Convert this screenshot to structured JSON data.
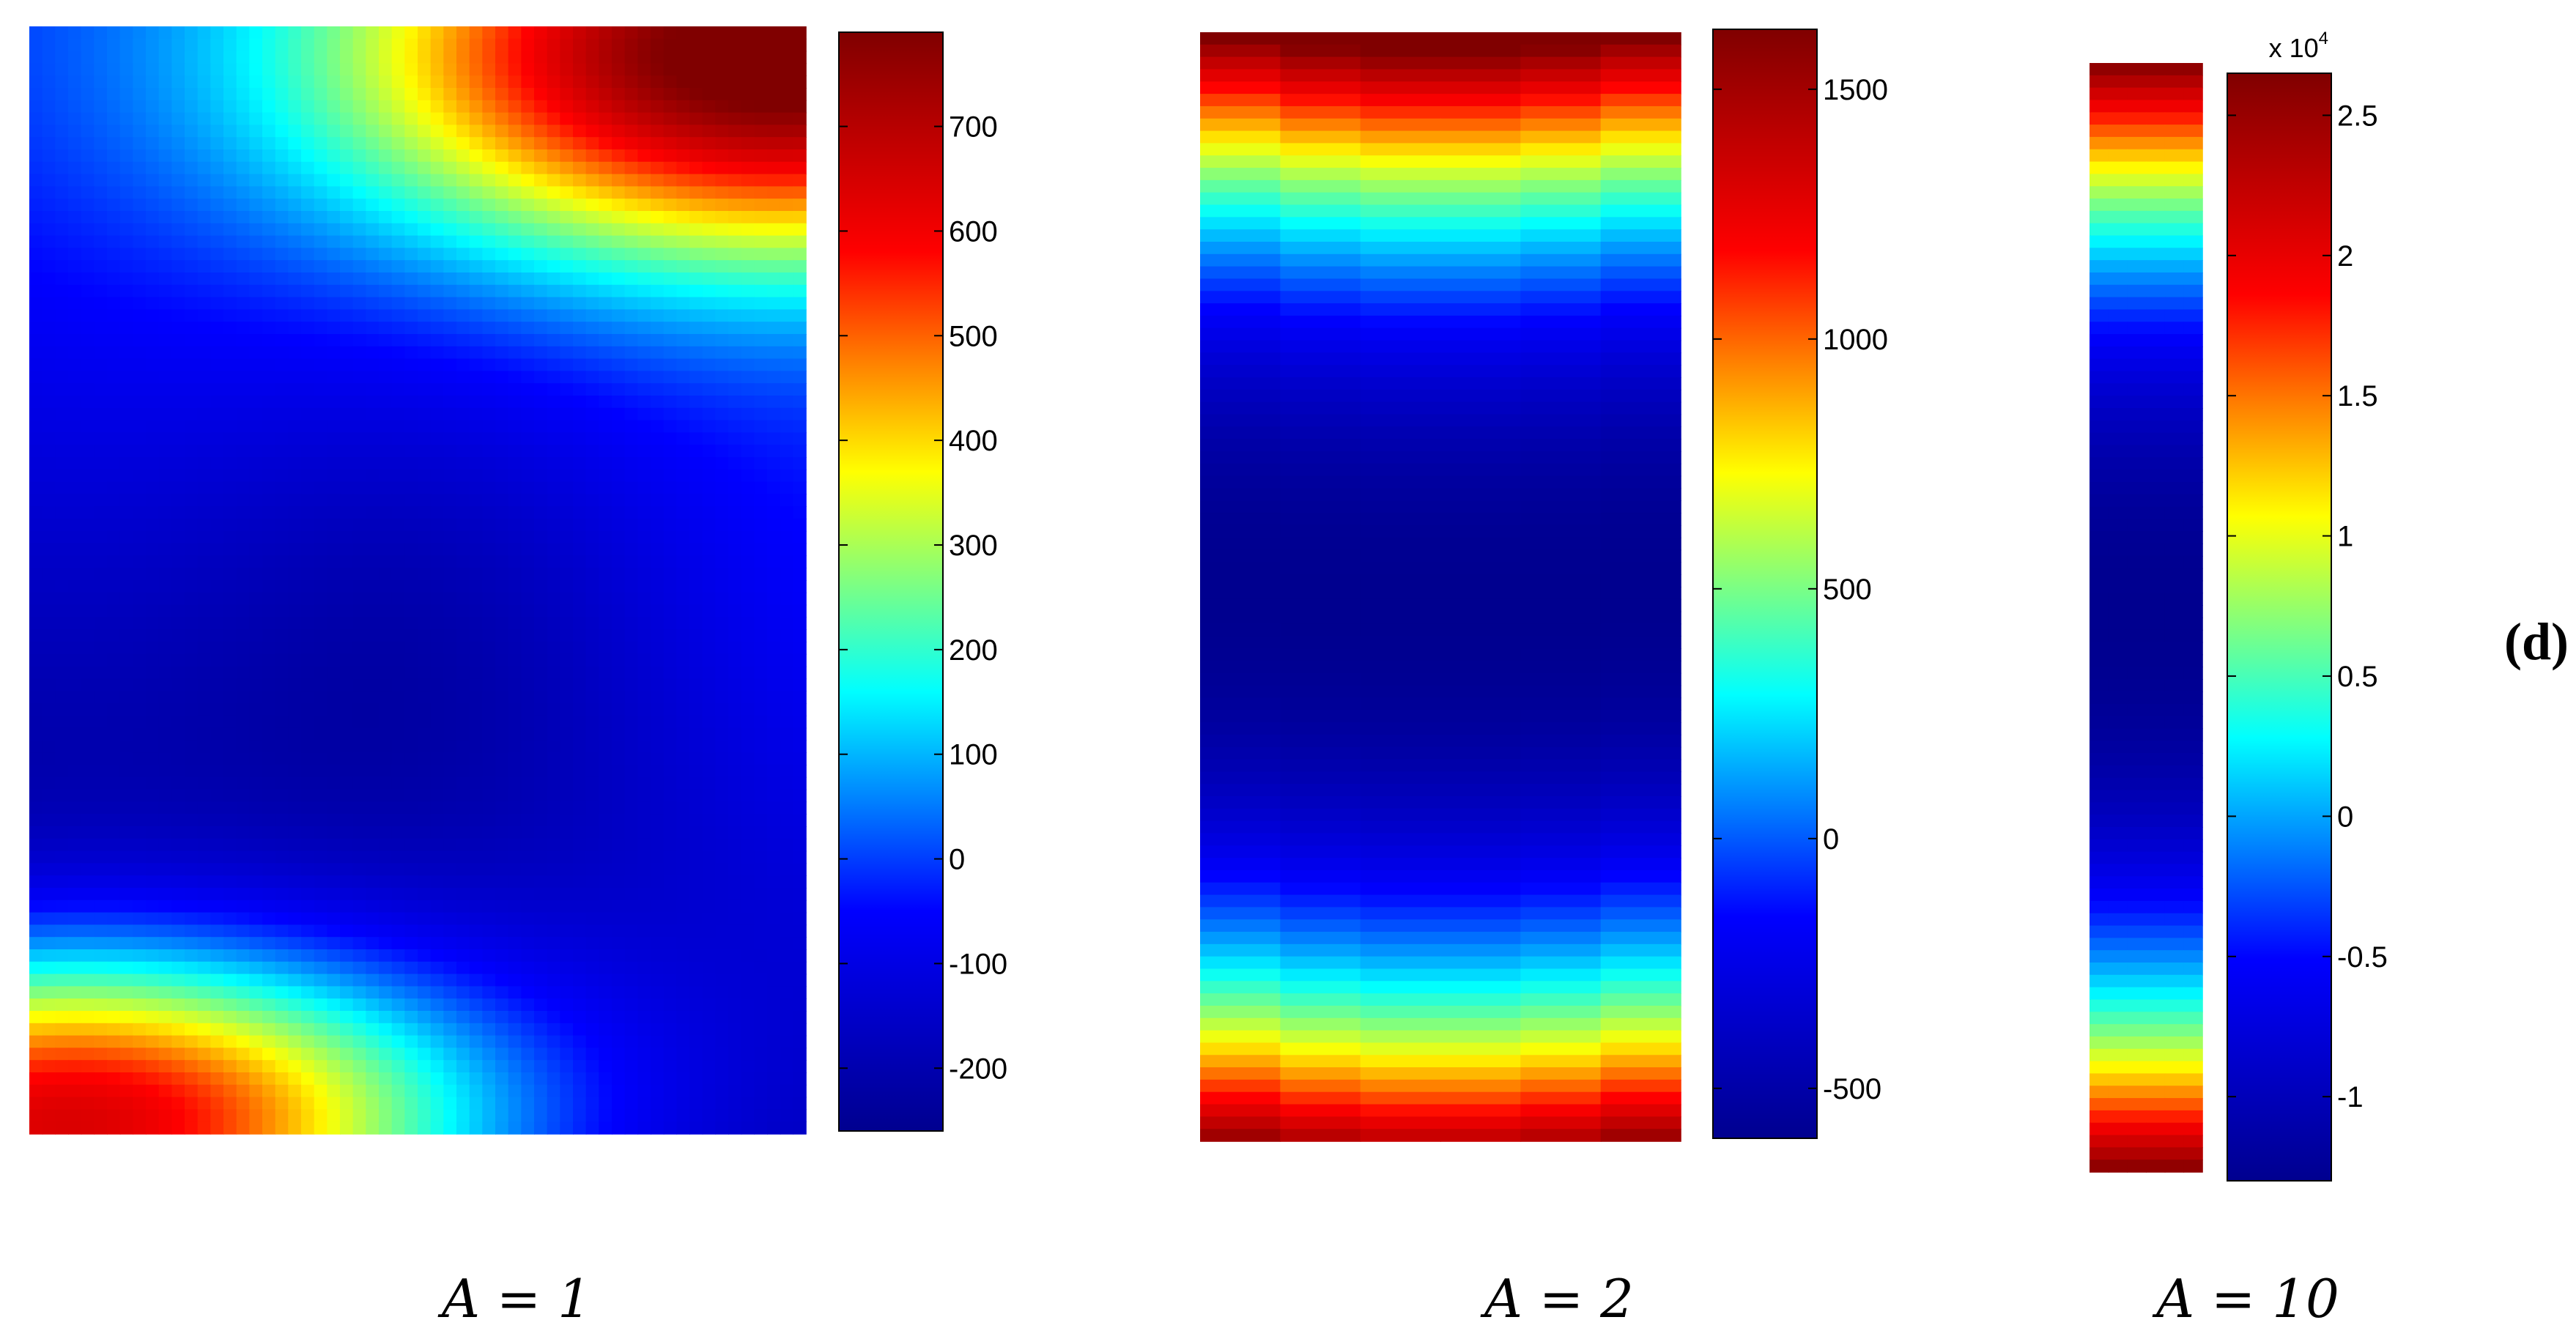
{
  "panel_label": "(d)",
  "colormap": [
    "#00008f",
    "#0000ff",
    "#00ffff",
    "#ffff00",
    "#ff0000",
    "#800000"
  ],
  "chart_data": [
    {
      "type": "heatmap",
      "caption": "A = 1",
      "colorbar": {
        "range": [
          -260,
          790
        ],
        "ticks": [
          700,
          600,
          500,
          400,
          300,
          200,
          100,
          0,
          -100,
          -200
        ],
        "tick_labels": [
          "700",
          "600",
          "500",
          "400",
          "300",
          "200",
          "100",
          "0",
          "-100",
          "-200"
        ],
        "multiplier": ""
      },
      "field": {
        "pattern": "corners",
        "features": [
          {
            "at": [
              0.98,
              0.02
            ],
            "value": 790,
            "spread": [
              0.55,
              0.18
            ]
          },
          {
            "at": [
              0.05,
              0.99
            ],
            "value": 760,
            "spread": [
              0.55,
              0.16
            ]
          },
          {
            "at": [
              0.52,
              0.52
            ],
            "value": -260,
            "spread": [
              0.35,
              0.25
            ]
          }
        ],
        "background": -150
      }
    },
    {
      "type": "heatmap",
      "caption": "A = 2",
      "colorbar": {
        "range": [
          -600,
          1620
        ],
        "ticks": [
          1500,
          1000,
          500,
          0,
          -500
        ],
        "tick_labels": [
          "1500",
          "1000",
          "500",
          "0",
          "-500"
        ],
        "multiplier": ""
      },
      "field": {
        "pattern": "bands",
        "features": [
          {
            "at": [
              0.95,
              0.02
            ],
            "value": 1620,
            "spread": [
              0.6,
              0.12
            ]
          },
          {
            "at": [
              0.05,
              0.99
            ],
            "value": 1620,
            "spread": [
              0.6,
              0.12
            ]
          }
        ],
        "background": -600
      }
    },
    {
      "type": "heatmap",
      "caption": "A = 10",
      "colorbar": {
        "range": [
          -1.3,
          2.65
        ],
        "ticks": [
          2.5,
          2,
          1.5,
          1,
          0.5,
          0,
          -0.5,
          -1
        ],
        "tick_labels": [
          "2.5",
          "2",
          "1.5",
          "1",
          "0.5",
          "0",
          "-0.5",
          "-1"
        ],
        "multiplier": "x 10",
        "exponent": "4"
      },
      "field": {
        "pattern": "bands",
        "features": [
          {
            "at": [
              0.5,
              0.0
            ],
            "value": 2.65,
            "spread": [
              1.0,
              0.12
            ]
          },
          {
            "at": [
              0.5,
              1.0
            ],
            "value": 2.65,
            "spread": [
              1.0,
              0.12
            ]
          }
        ],
        "background": -1.3
      }
    }
  ]
}
